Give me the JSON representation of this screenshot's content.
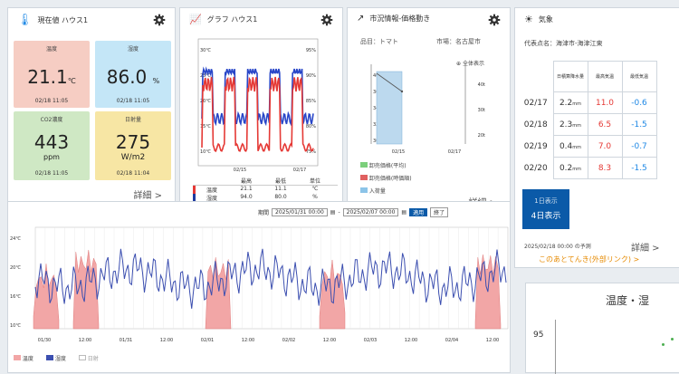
{
  "current": {
    "title": "現在値 ハウス1",
    "tiles": [
      {
        "label": "温度",
        "value": "21.1",
        "unit": "℃",
        "time": "02/18 11:05",
        "bg": "#f6cdc3"
      },
      {
        "label": "湿度",
        "value": "86.0",
        "unit": "%",
        "time": "02/18 11:05",
        "bg": "#c4e6f7"
      },
      {
        "label": "CO2濃度",
        "value": "443",
        "unit": "ppm",
        "time": "02/18 11:05",
        "bg": "#cfe8c4"
      },
      {
        "label": "日射量",
        "value": "275",
        "unit": "W/m2",
        "time": "02/18 11:04",
        "bg": "#f7e6a4"
      }
    ],
    "detail": "詳細 >"
  },
  "graph": {
    "title": "グラフ ハウス1",
    "yleft": [
      "30℃",
      "25℃",
      "20℃",
      "15℃",
      "10℃"
    ],
    "yright": [
      "95%",
      "90%",
      "85%",
      "80%",
      "75%"
    ],
    "xticks": [
      "02/15",
      "02/17"
    ],
    "headers": [
      "最高",
      "最低",
      "単位"
    ],
    "rows": [
      {
        "name": "温度",
        "max": "21.1",
        "min": "11.1",
        "unit": "℃"
      },
      {
        "name": "湿度",
        "max": "94.0",
        "min": "80.0",
        "unit": "%"
      }
    ]
  },
  "market": {
    "title": "市況情報-価格動き",
    "item_label": "品目：トマト",
    "market_label": "市場：名古屋市",
    "zoom_label": "全体表示",
    "yleft": [
      "400円",
      "360円",
      "340円",
      "320円",
      "300円"
    ],
    "yright": [
      "40t",
      "30t",
      "20t"
    ],
    "xticks": [
      "02/15",
      "02/17"
    ],
    "legend": [
      "卸売価格(平均)",
      "卸売価格(時価順)",
      "入荷量"
    ],
    "legend_colors": [
      "#7ccf7c",
      "#e06060",
      "#8cc4e8"
    ],
    "detail": "詳細 >"
  },
  "weather": {
    "title": "気象",
    "point": "代表点名：海津市-海津江東",
    "headers": [
      "日積算降水量",
      "最高気温",
      "最低気温"
    ],
    "rows": [
      {
        "date": "02/17",
        "rain": "2.2",
        "rain_unit": "mm",
        "max": "11.0",
        "min": "-0.6"
      },
      {
        "date": "02/18",
        "rain": "2.3",
        "rain_unit": "mm",
        "max": "6.5",
        "min": "-1.5"
      },
      {
        "date": "02/19",
        "rain": "0.4",
        "rain_unit": "mm",
        "max": "7.0",
        "min": "-0.7"
      },
      {
        "date": "02/20",
        "rain": "0.2",
        "rain_unit": "mm",
        "max": "8.3",
        "min": "-1.5"
      }
    ],
    "btn1": "1日表示",
    "btn2": "4日表示",
    "forecast": "2025/02/18 00:00 の予測",
    "detail": "詳細 >",
    "link": "このあとてんき(外部リンク) >"
  },
  "timeline": {
    "period_label": "期間",
    "from": "2025/01/31 00:00",
    "to": "2025/02/07 00:00",
    "apply": "適用",
    "close": "終了",
    "yticks": [
      "24℃",
      "20℃",
      "16℃",
      "10℃"
    ],
    "xticks": [
      "01/30",
      "12:00",
      "01/31",
      "12:00",
      "02/01",
      "12:00",
      "02/02",
      "12:00",
      "02/03",
      "12:00",
      "02/04",
      "12:00"
    ],
    "legend": [
      "温度",
      "湿度",
      "日射"
    ]
  },
  "scatter": {
    "title": "温度・湿",
    "ytick": "95"
  }
}
